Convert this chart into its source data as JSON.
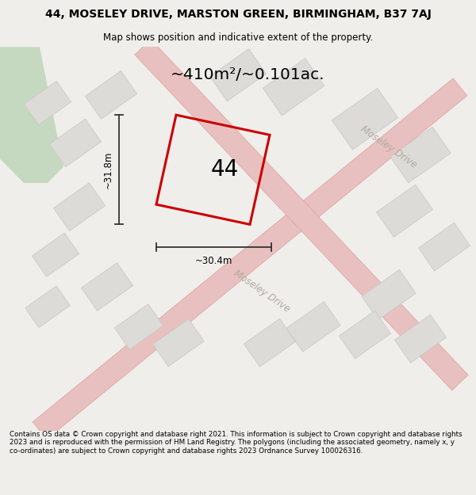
{
  "title_line1": "44, MOSELEY DRIVE, MARSTON GREEN, BIRMINGHAM, B37 7AJ",
  "title_line2": "Map shows position and indicative extent of the property.",
  "area_label": "~410m²/~0.101ac.",
  "number_label": "44",
  "width_label": "~30.4m",
  "height_label": "~31.8m",
  "footer_text": "Contains OS data © Crown copyright and database right 2021. This information is subject to Crown copyright and database rights 2023 and is reproduced with the permission of HM Land Registry. The polygons (including the associated geometry, namely x, y co-ordinates) are subject to Crown copyright and database rights 2023 Ordnance Survey 100026316.",
  "bg_color": "#f0eeeb",
  "map_bg": "#f0eeeb",
  "plot_color": "#cc0000",
  "road_color": "#e8c0c0",
  "road_edge_color": "#dda0a0",
  "block_color": "#dddbd8",
  "block_edge": "#c8c6c3",
  "green_color": "#c5d9c0",
  "road_label_color": "#b0a8a0",
  "dim_line_color": "#333333"
}
